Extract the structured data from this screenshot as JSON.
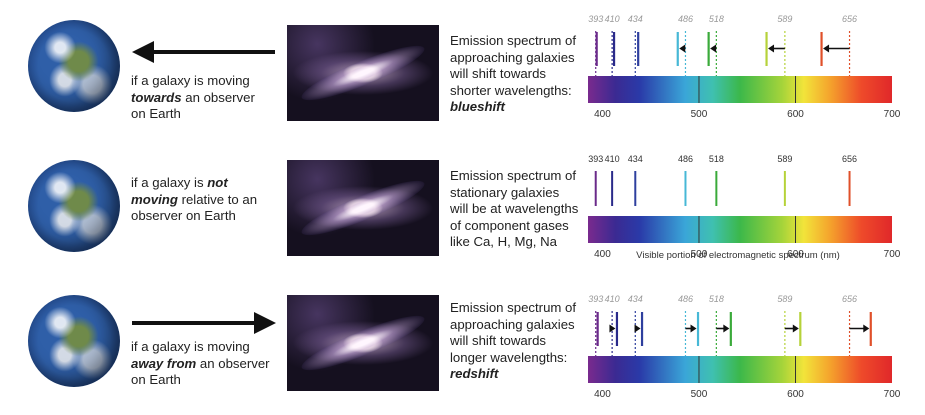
{
  "rows": [
    {
      "observer_text": [
        "if a galaxy is moving",
        "towards",
        "an observer",
        "on Earth"
      ],
      "description": [
        "Emission spectrum of",
        "approaching galaxies",
        "will shift towards",
        "shorter wavelengths:",
        "blueshift"
      ],
      "arrow": "left"
    },
    {
      "observer_text": [
        "if a galaxy is",
        "not",
        "moving",
        "relative to an",
        "observer on Earth"
      ],
      "description": [
        "Emission spectrum of",
        "stationary galaxies",
        "will be at wavelengths",
        "of component gases",
        "like Ca, H, Mg, Na"
      ],
      "arrow": "none"
    },
    {
      "observer_text": [
        "if a galaxy is moving",
        "away from",
        "an observer",
        "on Earth"
      ],
      "description": [
        "Emission spectrum of",
        "approaching galaxies",
        "will shift towards",
        "longer wavelengths:",
        "redshift"
      ],
      "arrow": "right"
    }
  ],
  "spectrum": {
    "scale_min": 385,
    "scale_max": 700,
    "axis_ticks": [
      "400",
      "500",
      "600",
      "700"
    ],
    "axis_tick_values": [
      400,
      500,
      600,
      700
    ],
    "lines": [
      {
        "label": "393",
        "value": 393,
        "color": "#6a2a8a"
      },
      {
        "label": "410",
        "value": 410,
        "color": "#2a2a8a"
      },
      {
        "label": "434",
        "value": 434,
        "color": "#2e3f9e"
      },
      {
        "label": "486",
        "value": 486,
        "color": "#47b8d6"
      },
      {
        "label": "518",
        "value": 518,
        "color": "#3aaa3a"
      },
      {
        "label": "589",
        "value": 589,
        "color": "#b6d23a"
      },
      {
        "label": "656",
        "value": 656,
        "color": "#e0502a"
      }
    ],
    "blueshift_values": [
      394,
      412,
      437,
      478,
      510,
      570,
      627
    ],
    "redshift_values": [
      395,
      415,
      441,
      499,
      533,
      605,
      678
    ],
    "axis_caption": "Visible portion of electromagnetic spectrum (nm)"
  }
}
